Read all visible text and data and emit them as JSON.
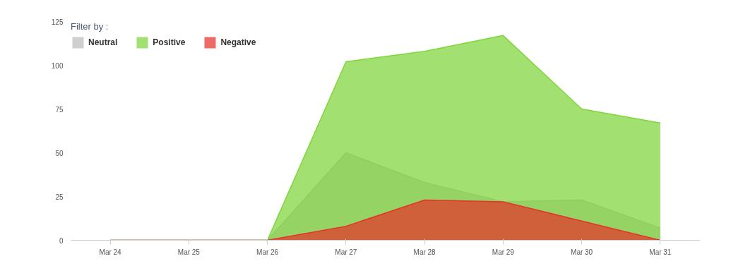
{
  "chart_data": {
    "type": "area",
    "legend_title": "Filter by :",
    "categories": [
      "Mar 24",
      "Mar 25",
      "Mar 26",
      "Mar 27",
      "Mar 28",
      "Mar 29",
      "Mar 30",
      "Mar 31"
    ],
    "series": [
      {
        "name": "Neutral",
        "color": "#bdbdbd",
        "values": [
          0,
          0,
          0,
          50,
          33,
          22,
          23,
          7
        ]
      },
      {
        "name": "Positive",
        "color": "#7ed63a",
        "values": [
          0,
          0,
          0,
          102,
          108,
          117,
          75,
          67
        ]
      },
      {
        "name": "Negative",
        "color": "#e5332a",
        "values": [
          0,
          0,
          0,
          8,
          23,
          22,
          11,
          0
        ]
      }
    ],
    "ylim": [
      0,
      125
    ],
    "yticks": [
      0,
      25,
      50,
      75,
      100,
      125
    ],
    "grid": false,
    "legend": "top left"
  }
}
